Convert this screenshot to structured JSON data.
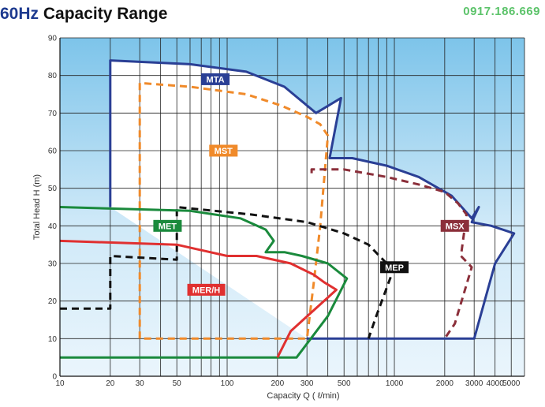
{
  "header": {
    "title_hz": "60Hz",
    "title_rest": " Capacity Range",
    "phone": "0917.186.669"
  },
  "chart_data": {
    "type": "area",
    "xscale": "log",
    "xlim": [
      10,
      6000
    ],
    "ylim": [
      0,
      90
    ],
    "xlabel": "Capacity Q ( ℓ/min)",
    "ylabel": "Total Head H (m)",
    "x_ticks": [
      10,
      20,
      30,
      50,
      100,
      200,
      300,
      500,
      1000,
      2000,
      3000,
      4000,
      5000
    ],
    "y_ticks": [
      0,
      10,
      20,
      30,
      40,
      50,
      60,
      70,
      80,
      90
    ],
    "grid": true,
    "series": [
      {
        "name": "MTA",
        "color": "#2a3f95",
        "style": "solid",
        "label_at": [
          85,
          79
        ],
        "points": [
          [
            20,
            45
          ],
          [
            20,
            84
          ],
          [
            60,
            83
          ],
          [
            130,
            81
          ],
          [
            220,
            77
          ],
          [
            340,
            70
          ],
          [
            480,
            74
          ],
          [
            410,
            58
          ],
          [
            560,
            58
          ],
          [
            900,
            56
          ],
          [
            1400,
            53
          ],
          [
            2200,
            48
          ],
          [
            2900,
            42
          ],
          [
            3200,
            45
          ],
          [
            2900,
            41
          ],
          [
            3800,
            40
          ],
          [
            5200,
            38
          ],
          [
            4000,
            30
          ],
          [
            3000,
            10
          ],
          [
            300,
            10
          ]
        ]
      },
      {
        "name": "MST",
        "color": "#f08a2a",
        "style": "dashed",
        "label_at": [
          95,
          60
        ],
        "points": [
          [
            30,
            10
          ],
          [
            30,
            78
          ],
          [
            60,
            77
          ],
          [
            130,
            75
          ],
          [
            210,
            72
          ],
          [
            300,
            69
          ],
          [
            360,
            67
          ],
          [
            400,
            64
          ],
          [
            360,
            40
          ],
          [
            330,
            25
          ],
          [
            300,
            10
          ],
          [
            30,
            10
          ]
        ]
      },
      {
        "name": "MSX",
        "color": "#8b2f3a",
        "style": "dashed",
        "label_at": [
          2300,
          40
        ],
        "points": [
          [
            320,
            54
          ],
          [
            320,
            55
          ],
          [
            500,
            55
          ],
          [
            900,
            53
          ],
          [
            1400,
            51
          ],
          [
            2000,
            49
          ],
          [
            2400,
            46
          ],
          [
            2700,
            43
          ],
          [
            2500,
            32
          ],
          [
            2900,
            29
          ],
          [
            2300,
            14
          ],
          [
            2000,
            10
          ]
        ]
      },
      {
        "name": "MEP",
        "color": "#111111",
        "style": "dashed",
        "label_at": [
          1000,
          29
        ],
        "points": [
          [
            10,
            18
          ],
          [
            20,
            18
          ],
          [
            20,
            32
          ],
          [
            50,
            31
          ],
          [
            50,
            45
          ],
          [
            140,
            43
          ],
          [
            300,
            41
          ],
          [
            500,
            38
          ],
          [
            700,
            35
          ],
          [
            900,
            30
          ],
          [
            980,
            28
          ],
          [
            780,
            16
          ],
          [
            700,
            10
          ]
        ]
      },
      {
        "name": "MET",
        "color": "#1a8a3c",
        "style": "solid",
        "label_at": [
          44,
          40
        ],
        "points": [
          [
            10,
            5
          ],
          [
            260,
            5
          ],
          [
            400,
            16
          ],
          [
            520,
            26
          ],
          [
            400,
            30
          ],
          [
            280,
            32
          ],
          [
            220,
            33
          ],
          [
            170,
            33
          ],
          [
            190,
            36
          ],
          [
            170,
            39
          ],
          [
            120,
            42
          ],
          [
            60,
            44
          ],
          [
            10,
            45
          ]
        ]
      },
      {
        "name": "MER/H",
        "color": "#e03030",
        "style": "solid",
        "label_at": [
          75,
          23
        ],
        "points": [
          [
            10,
            36
          ],
          [
            50,
            35
          ],
          [
            100,
            32
          ],
          [
            150,
            32
          ],
          [
            240,
            30
          ],
          [
            330,
            27
          ],
          [
            380,
            25
          ],
          [
            450,
            23
          ],
          [
            240,
            12
          ],
          [
            200,
            5
          ]
        ]
      }
    ]
  }
}
